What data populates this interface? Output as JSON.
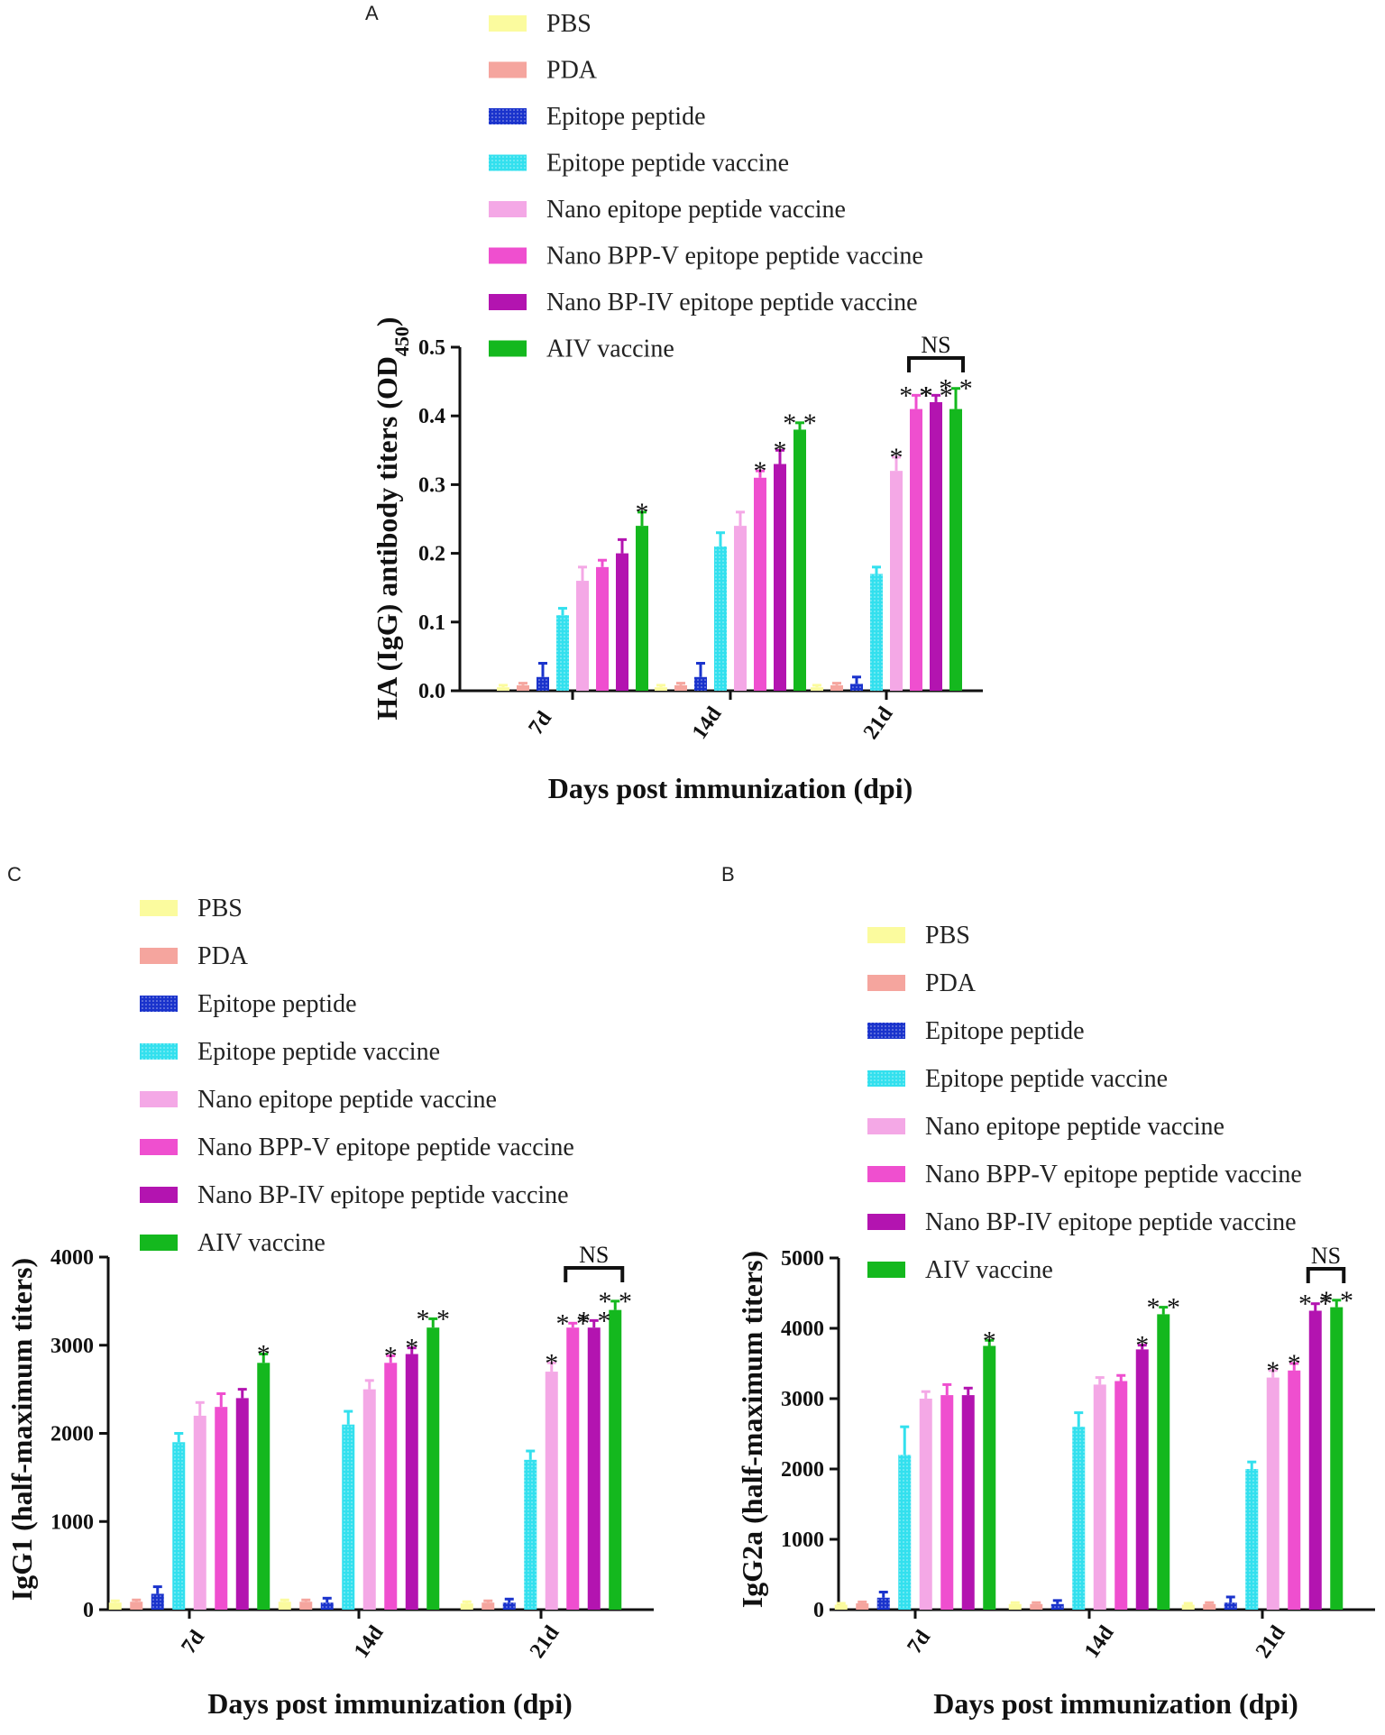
{
  "colors": {
    "PBS": "#fbfb9e",
    "PDA": "#f5a59e",
    "Epitope peptide": "#1a33cc",
    "Epitope peptide vaccine": "#33e0ee",
    "Nano epitope peptide vaccine": "#f4a8e6",
    "Nano BPP-V epitope peptide vaccine": "#ef4fcf",
    "Nano BP-IV epitope peptide vaccine": "#b314b0",
    "AIV vaccine": "#14b81e"
  },
  "chart_data": [
    {
      "panel": "A",
      "type": "bar",
      "ylabel": "HA (IgG) antibody titers (OD450)",
      "ylabel_main": "HA (IgG) antibody titers (OD",
      "ylabel_sub": "450",
      "ylabel_close": ")",
      "xlabel": "Days post immunization (dpi)",
      "categories": [
        "7d",
        "14d",
        "21d"
      ],
      "ylim": [
        0,
        0.5
      ],
      "yticks": [
        "0.0",
        "0.1",
        "0.2",
        "0.3",
        "0.4",
        "0.5"
      ],
      "ytick_values": [
        0,
        0.1,
        0.2,
        0.3,
        0.4,
        0.5
      ],
      "legend": [
        "PBS",
        "PDA",
        "Epitope peptide",
        "Epitope peptide vaccine",
        "Nano epitope peptide vaccine",
        "Nano BPP-V epitope peptide vaccine",
        "Nano BP-IV epitope peptide vaccine",
        "AIV vaccine"
      ],
      "series": [
        {
          "name": "PBS",
          "values": [
            0.005,
            0.005,
            0.005
          ],
          "errors": [
            0.003,
            0.003,
            0.003
          ]
        },
        {
          "name": "PDA",
          "values": [
            0.008,
            0.008,
            0.008
          ],
          "errors": [
            0.003,
            0.003,
            0.003
          ]
        },
        {
          "name": "Epitope peptide",
          "values": [
            0.02,
            0.02,
            0.01
          ],
          "errors": [
            0.02,
            0.02,
            0.01
          ]
        },
        {
          "name": "Epitope peptide vaccine",
          "values": [
            0.11,
            0.21,
            0.17
          ],
          "errors": [
            0.01,
            0.02,
            0.01
          ]
        },
        {
          "name": "Nano epitope peptide vaccine",
          "values": [
            0.16,
            0.24,
            0.32
          ],
          "errors": [
            0.02,
            0.02,
            0.02
          ]
        },
        {
          "name": "Nano BPP-V epitope peptide vaccine",
          "values": [
            0.18,
            0.31,
            0.41
          ],
          "errors": [
            0.01,
            0.01,
            0.02
          ]
        },
        {
          "name": "Nano BP-IV epitope peptide vaccine",
          "values": [
            0.2,
            0.33,
            0.42
          ],
          "errors": [
            0.02,
            0.02,
            0.01
          ]
        },
        {
          "name": "AIV vaccine",
          "values": [
            0.24,
            0.38,
            0.41
          ],
          "errors": [
            0.02,
            0.01,
            0.03
          ]
        }
      ],
      "annotations": [
        {
          "category": 0,
          "series": 7,
          "text": "*"
        },
        {
          "category": 1,
          "series": 5,
          "text": "*"
        },
        {
          "category": 1,
          "series": 6,
          "text": "*"
        },
        {
          "category": 1,
          "series": 7,
          "text": "**"
        },
        {
          "category": 2,
          "series": 4,
          "text": "*"
        },
        {
          "category": 2,
          "series": 5,
          "text": "**"
        },
        {
          "category": 2,
          "series": 6,
          "text": "**"
        },
        {
          "category": 2,
          "series": 7,
          "text": "**"
        }
      ],
      "ns_bracket": {
        "category": 2,
        "from_series": 5,
        "to_series": 7,
        "text": "NS"
      }
    },
    {
      "panel": "C",
      "type": "bar",
      "ylabel": "IgG1 (half-maximum titers)",
      "xlabel": "Days post immunization (dpi)",
      "categories": [
        "7d",
        "14d",
        "21d"
      ],
      "ylim": [
        0,
        4000
      ],
      "yticks": [
        "0",
        "1000",
        "2000",
        "3000",
        "4000"
      ],
      "ytick_values": [
        0,
        1000,
        2000,
        3000,
        4000
      ],
      "legend": [
        "PBS",
        "PDA",
        "Epitope peptide",
        "Epitope peptide vaccine",
        "Nano epitope peptide vaccine",
        "Nano BPP-V epitope peptide vaccine",
        "Nano BP-IV epitope peptide vaccine",
        "AIV vaccine"
      ],
      "series": [
        {
          "name": "PBS",
          "values": [
            80,
            90,
            70
          ],
          "errors": [
            20,
            20,
            20
          ]
        },
        {
          "name": "PDA",
          "values": [
            90,
            90,
            80
          ],
          "errors": [
            20,
            20,
            20
          ]
        },
        {
          "name": "Epitope peptide",
          "values": [
            180,
            80,
            80
          ],
          "errors": [
            80,
            50,
            40
          ]
        },
        {
          "name": "Epitope peptide vaccine",
          "values": [
            1900,
            2100,
            1700
          ],
          "errors": [
            100,
            150,
            100
          ]
        },
        {
          "name": "Nano epitope peptide vaccine",
          "values": [
            2200,
            2500,
            2700
          ],
          "errors": [
            150,
            100,
            100
          ]
        },
        {
          "name": "Nano BPP-V epitope peptide vaccine",
          "values": [
            2300,
            2800,
            3200
          ],
          "errors": [
            150,
            80,
            50
          ]
        },
        {
          "name": "Nano BP-IV epitope peptide vaccine",
          "values": [
            2400,
            2900,
            3200
          ],
          "errors": [
            100,
            70,
            80
          ]
        },
        {
          "name": "AIV vaccine",
          "values": [
            2800,
            3200,
            3400
          ],
          "errors": [
            100,
            100,
            100
          ]
        }
      ],
      "annotations": [
        {
          "category": 0,
          "series": 7,
          "text": "*"
        },
        {
          "category": 1,
          "series": 5,
          "text": "*"
        },
        {
          "category": 1,
          "series": 6,
          "text": "*"
        },
        {
          "category": 1,
          "series": 7,
          "text": "**"
        },
        {
          "category": 2,
          "series": 4,
          "text": "*"
        },
        {
          "category": 2,
          "series": 5,
          "text": "**"
        },
        {
          "category": 2,
          "series": 6,
          "text": "**"
        },
        {
          "category": 2,
          "series": 7,
          "text": "**"
        }
      ],
      "ns_bracket": {
        "category": 2,
        "from_series": 5,
        "to_series": 7,
        "text": "NS"
      }
    },
    {
      "panel": "B",
      "type": "bar",
      "ylabel": "IgG2a (half-maximum titers)",
      "xlabel": "Days post immunization (dpi)",
      "categories": [
        "7d",
        "14d",
        "21d"
      ],
      "ylim": [
        0,
        5000
      ],
      "yticks": [
        "0",
        "1000",
        "2000",
        "3000",
        "4000",
        "5000"
      ],
      "ytick_values": [
        0,
        1000,
        2000,
        3000,
        4000,
        5000
      ],
      "legend": [
        "PBS",
        "PDA",
        "Epitope peptide",
        "Epitope peptide vaccine",
        "Nano epitope peptide vaccine",
        "Nano BPP-V epitope peptide vaccine",
        "Nano BP-IV epitope peptide vaccine",
        "AIV vaccine"
      ],
      "series": [
        {
          "name": "PBS",
          "values": [
            70,
            80,
            70
          ],
          "errors": [
            20,
            20,
            20
          ]
        },
        {
          "name": "PDA",
          "values": [
            90,
            80,
            80
          ],
          "errors": [
            20,
            20,
            20
          ]
        },
        {
          "name": "Epitope peptide",
          "values": [
            170,
            80,
            100
          ],
          "errors": [
            80,
            50,
            80
          ]
        },
        {
          "name": "Epitope peptide vaccine",
          "values": [
            2200,
            2600,
            2000
          ],
          "errors": [
            400,
            200,
            100
          ]
        },
        {
          "name": "Nano epitope peptide vaccine",
          "values": [
            3000,
            3200,
            3300
          ],
          "errors": [
            100,
            100,
            100
          ]
        },
        {
          "name": "Nano BPP-V epitope peptide vaccine",
          "values": [
            3050,
            3250,
            3400
          ],
          "errors": [
            150,
            80,
            100
          ]
        },
        {
          "name": "Nano BP-IV epitope peptide vaccine",
          "values": [
            3050,
            3700,
            4250
          ],
          "errors": [
            100,
            60,
            100
          ]
        },
        {
          "name": "AIV vaccine",
          "values": [
            3750,
            4200,
            4300
          ],
          "errors": [
            80,
            100,
            100
          ]
        }
      ],
      "annotations": [
        {
          "category": 0,
          "series": 7,
          "text": "*"
        },
        {
          "category": 1,
          "series": 6,
          "text": "*"
        },
        {
          "category": 1,
          "series": 7,
          "text": "**"
        },
        {
          "category": 2,
          "series": 4,
          "text": "*"
        },
        {
          "category": 2,
          "series": 5,
          "text": "*"
        },
        {
          "category": 2,
          "series": 6,
          "text": "**"
        },
        {
          "category": 2,
          "series": 7,
          "text": "**"
        }
      ],
      "ns_bracket": {
        "category": 2,
        "from_series": 6,
        "to_series": 7,
        "text": "NS"
      }
    }
  ]
}
